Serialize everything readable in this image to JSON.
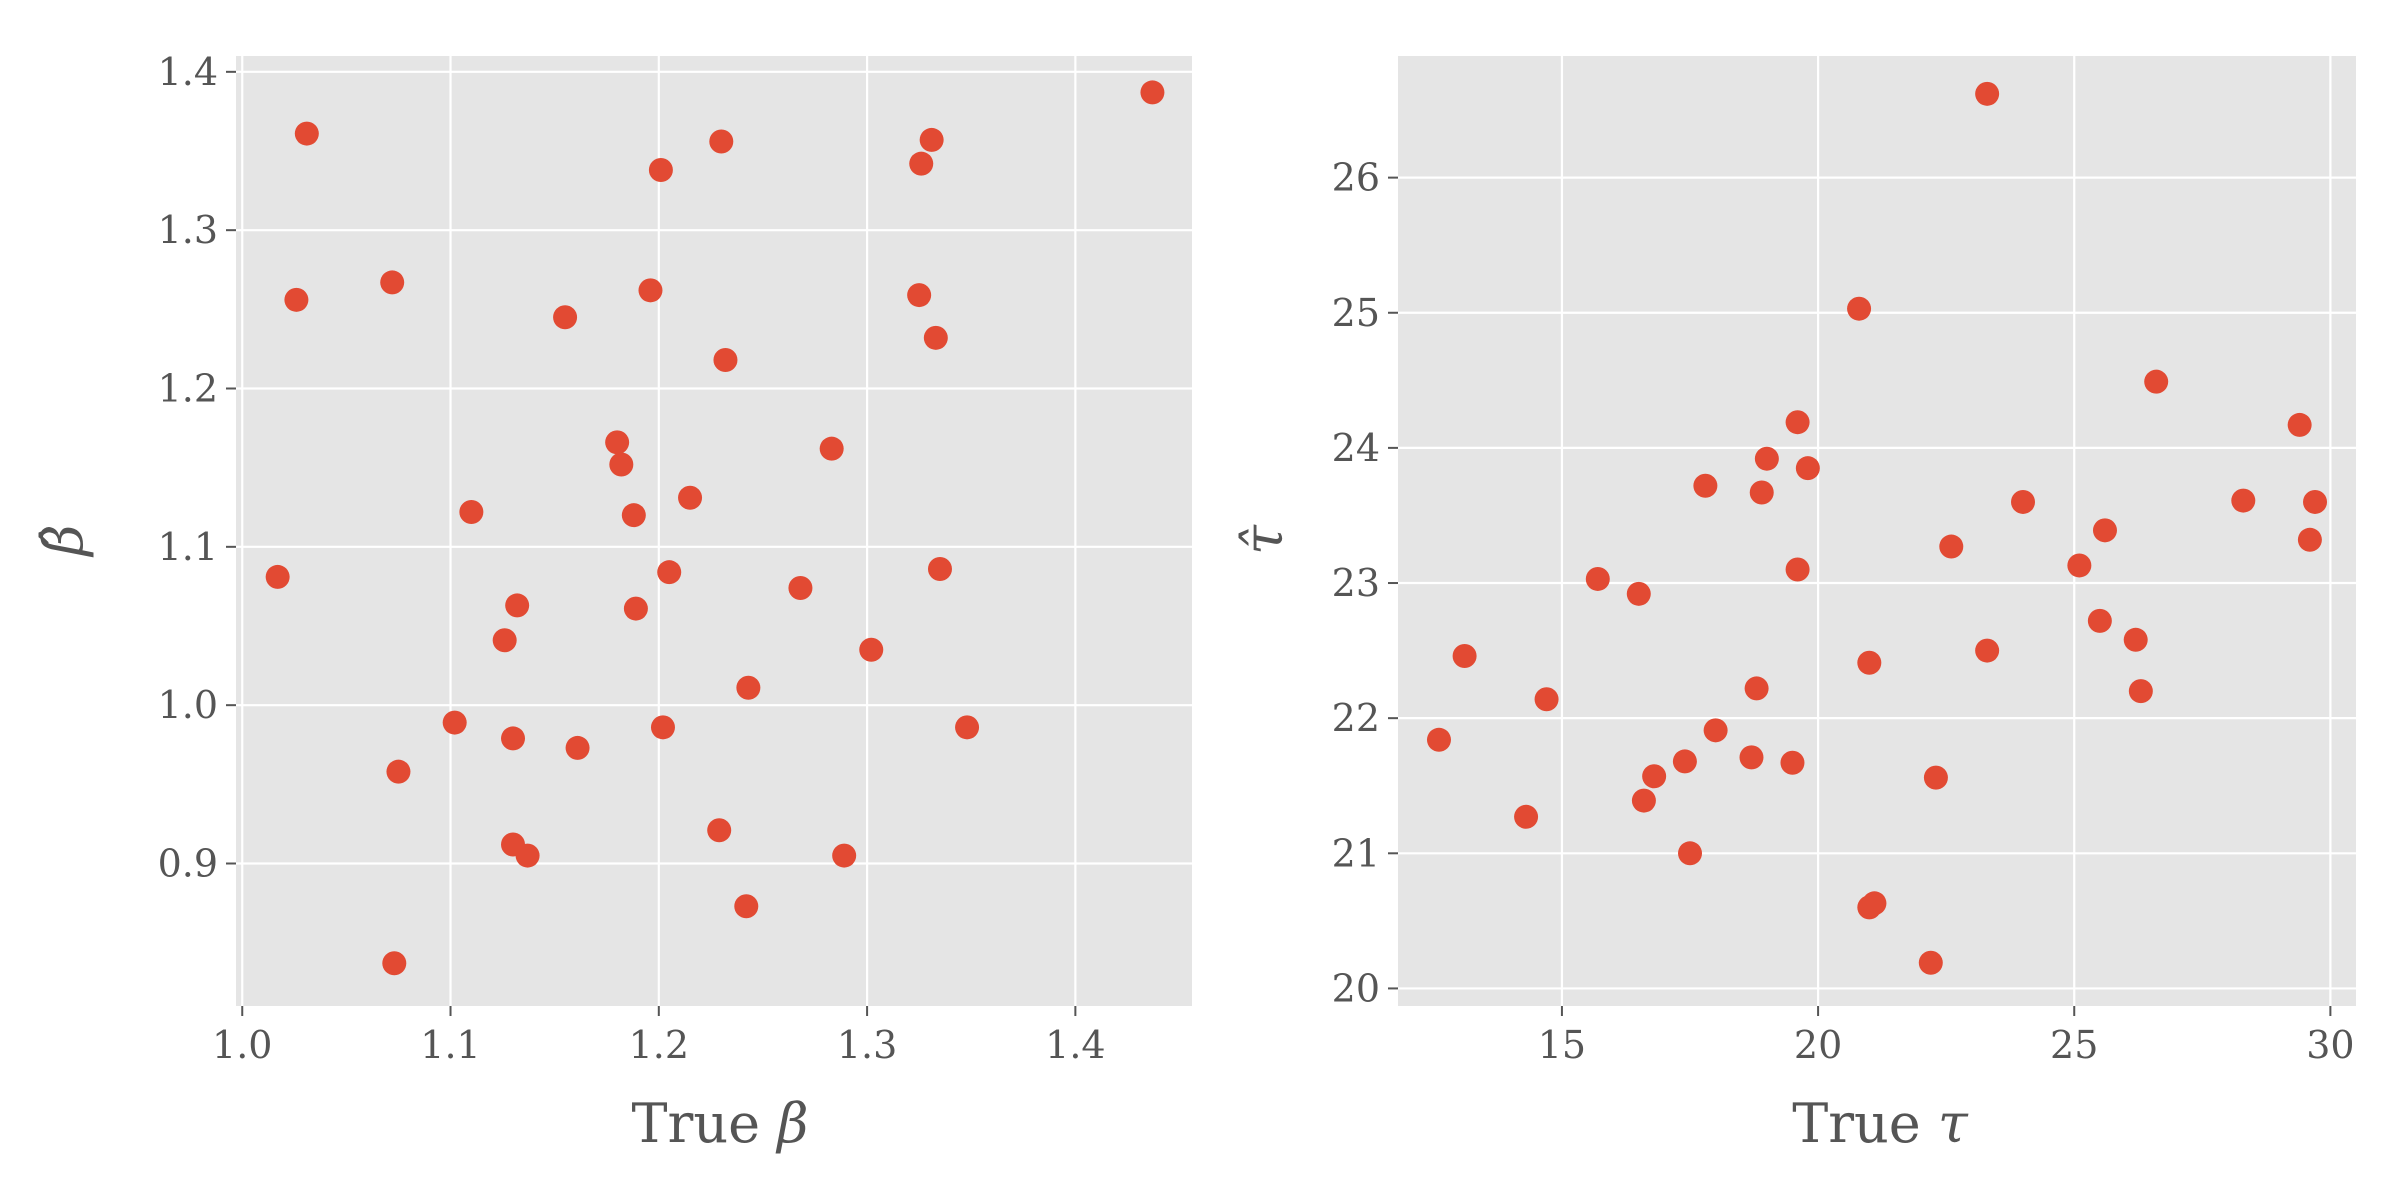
{
  "colors": {
    "panel_background": "#e5e5e5",
    "grid": "#ffffff",
    "marker": "#e24a33",
    "tick_text": "#555555"
  },
  "chart_data": [
    {
      "type": "scatter",
      "title": "",
      "xlabel_text": "True ",
      "xlabel_symbol": "β",
      "ylabel_symbol": "β̂",
      "xlim": [
        0.997,
        1.456
      ],
      "ylim": [
        0.81,
        1.41
      ],
      "xticks": [
        1.0,
        1.1,
        1.2,
        1.3,
        1.4
      ],
      "yticks": [
        0.9,
        1.0,
        1.1,
        1.2,
        1.3,
        1.4
      ],
      "xtick_labels": [
        "1.0",
        "1.1",
        "1.2",
        "1.3",
        "1.4"
      ],
      "ytick_labels": [
        "0.9",
        "1.0",
        "1.1",
        "1.2",
        "1.3",
        "1.4"
      ],
      "grid": true,
      "points": [
        {
          "x": 1.017,
          "y": 1.081
        },
        {
          "x": 1.026,
          "y": 1.256
        },
        {
          "x": 1.031,
          "y": 1.361
        },
        {
          "x": 1.072,
          "y": 1.267
        },
        {
          "x": 1.073,
          "y": 0.837
        },
        {
          "x": 1.075,
          "y": 0.958
        },
        {
          "x": 1.102,
          "y": 0.989
        },
        {
          "x": 1.11,
          "y": 1.122
        },
        {
          "x": 1.126,
          "y": 1.041
        },
        {
          "x": 1.13,
          "y": 0.979
        },
        {
          "x": 1.13,
          "y": 0.912
        },
        {
          "x": 1.132,
          "y": 1.063
        },
        {
          "x": 1.137,
          "y": 0.905
        },
        {
          "x": 1.155,
          "y": 1.245
        },
        {
          "x": 1.161,
          "y": 0.973
        },
        {
          "x": 1.18,
          "y": 1.166
        },
        {
          "x": 1.182,
          "y": 1.152
        },
        {
          "x": 1.188,
          "y": 1.12
        },
        {
          "x": 1.189,
          "y": 1.061
        },
        {
          "x": 1.196,
          "y": 1.262
        },
        {
          "x": 1.201,
          "y": 1.338
        },
        {
          "x": 1.202,
          "y": 0.986
        },
        {
          "x": 1.205,
          "y": 1.084
        },
        {
          "x": 1.215,
          "y": 1.131
        },
        {
          "x": 1.229,
          "y": 0.921
        },
        {
          "x": 1.23,
          "y": 1.356
        },
        {
          "x": 1.232,
          "y": 1.218
        },
        {
          "x": 1.242,
          "y": 0.873
        },
        {
          "x": 1.243,
          "y": 1.011
        },
        {
          "x": 1.268,
          "y": 1.074
        },
        {
          "x": 1.283,
          "y": 1.162
        },
        {
          "x": 1.289,
          "y": 0.905
        },
        {
          "x": 1.302,
          "y": 1.035
        },
        {
          "x": 1.325,
          "y": 1.259
        },
        {
          "x": 1.326,
          "y": 1.342
        },
        {
          "x": 1.331,
          "y": 1.357
        },
        {
          "x": 1.333,
          "y": 1.232
        },
        {
          "x": 1.335,
          "y": 1.086
        },
        {
          "x": 1.348,
          "y": 0.986
        },
        {
          "x": 1.437,
          "y": 1.387
        }
      ]
    },
    {
      "type": "scatter",
      "title": "",
      "xlabel_text": "True ",
      "xlabel_symbol": "τ",
      "ylabel_symbol": "τ̂",
      "xlim": [
        11.8,
        30.5
      ],
      "ylim": [
        19.87,
        26.9
      ],
      "xticks": [
        15,
        20,
        25,
        30
      ],
      "yticks": [
        20,
        21,
        22,
        23,
        24,
        25,
        26
      ],
      "xtick_labels": [
        "15",
        "20",
        "25",
        "30"
      ],
      "ytick_labels": [
        "20",
        "21",
        "22",
        "23",
        "24",
        "25",
        "26"
      ],
      "grid": true,
      "points": [
        {
          "x": 12.6,
          "y": 21.84
        },
        {
          "x": 13.1,
          "y": 22.46
        },
        {
          "x": 14.3,
          "y": 21.27
        },
        {
          "x": 14.7,
          "y": 22.14
        },
        {
          "x": 15.7,
          "y": 23.03
        },
        {
          "x": 16.5,
          "y": 22.92
        },
        {
          "x": 16.6,
          "y": 21.39
        },
        {
          "x": 16.8,
          "y": 21.57
        },
        {
          "x": 17.4,
          "y": 21.68
        },
        {
          "x": 17.5,
          "y": 21.0
        },
        {
          "x": 17.8,
          "y": 23.72
        },
        {
          "x": 18.0,
          "y": 21.91
        },
        {
          "x": 18.7,
          "y": 21.71
        },
        {
          "x": 18.8,
          "y": 22.22
        },
        {
          "x": 18.9,
          "y": 23.67
        },
        {
          "x": 19.0,
          "y": 23.92
        },
        {
          "x": 19.5,
          "y": 21.67
        },
        {
          "x": 19.6,
          "y": 24.19
        },
        {
          "x": 19.6,
          "y": 23.1
        },
        {
          "x": 19.8,
          "y": 23.85
        },
        {
          "x": 20.8,
          "y": 25.03
        },
        {
          "x": 21.0,
          "y": 20.6
        },
        {
          "x": 21.0,
          "y": 22.41
        },
        {
          "x": 21.1,
          "y": 20.63
        },
        {
          "x": 22.2,
          "y": 20.19
        },
        {
          "x": 22.3,
          "y": 21.56
        },
        {
          "x": 22.6,
          "y": 23.27
        },
        {
          "x": 23.3,
          "y": 26.62
        },
        {
          "x": 23.3,
          "y": 22.5
        },
        {
          "x": 24.0,
          "y": 23.6
        },
        {
          "x": 25.1,
          "y": 23.13
        },
        {
          "x": 25.5,
          "y": 22.72
        },
        {
          "x": 25.6,
          "y": 23.39
        },
        {
          "x": 26.2,
          "y": 22.58
        },
        {
          "x": 26.3,
          "y": 22.2
        },
        {
          "x": 26.6,
          "y": 24.49
        },
        {
          "x": 28.3,
          "y": 23.61
        },
        {
          "x": 29.4,
          "y": 24.17
        },
        {
          "x": 29.6,
          "y": 23.32
        },
        {
          "x": 29.7,
          "y": 23.6
        }
      ]
    }
  ]
}
